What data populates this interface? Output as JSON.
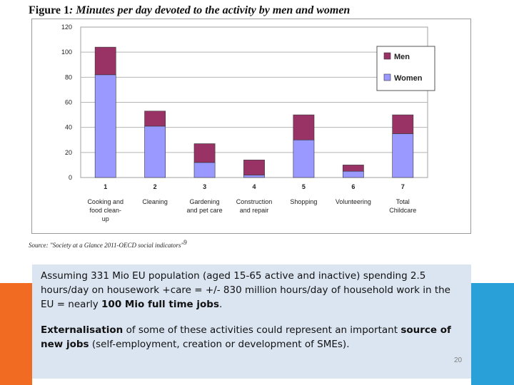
{
  "figure": {
    "label": "Figure 1",
    "caption": ": Minutes per day devoted to the activity by men and women",
    "source": "Source: \"Society at a Glance 2011-OECD social indicators\"",
    "footnote_mark": "9"
  },
  "chart_data": {
    "type": "bar",
    "stacked": true,
    "title": "",
    "xlabel": "",
    "ylabel": "",
    "ylim": [
      0,
      120
    ],
    "yticks": [
      "0",
      "20",
      "40",
      "60",
      "80",
      "100",
      "120"
    ],
    "categories": [
      "1",
      "2",
      "3",
      "4",
      "5",
      "6",
      "7"
    ],
    "category_labels": [
      [
        "Cooking and",
        "food clean-",
        "up"
      ],
      [
        "Cleaning"
      ],
      [
        "Gardening",
        "and pet care"
      ],
      [
        "Construction",
        "and repair"
      ],
      [
        "Shopping"
      ],
      [
        "Volunteering"
      ],
      [
        "Total",
        "Childcare"
      ]
    ],
    "series": [
      {
        "name": "Women",
        "color": "#9999ff",
        "values": [
          82,
          41,
          12,
          2,
          30,
          5,
          35
        ]
      },
      {
        "name": "Men",
        "color": "#993366",
        "values": [
          22,
          12,
          15,
          12,
          20,
          5,
          15
        ]
      }
    ],
    "legend_order": [
      "Men",
      "Women"
    ],
    "legend_position": "top-right",
    "grid": true
  },
  "text": {
    "para1_part1": "Assuming 331 Mio EU population (aged 15-65 active and inactive) spending 2.5 hours/day on housework +care = +/- 830 million hours/day of household work in the EU = nearly ",
    "para1_bold": "100 Mio full time jobs",
    "para1_end": ".",
    "para2_bold1": "Externalisation",
    "para2_part1": " of some of these activities could represent an important ",
    "para2_bold2": "source of new jobs",
    "para2_part2": " (self-employment, creation or development of SMEs)."
  },
  "slide": {
    "page_number": "20"
  }
}
